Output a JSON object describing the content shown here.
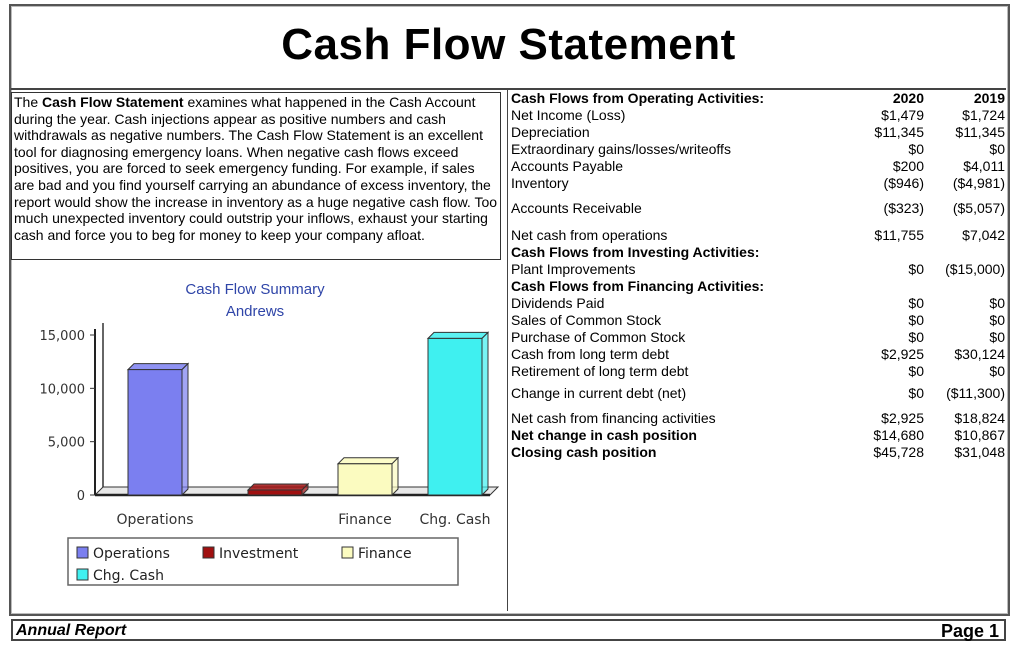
{
  "header": {
    "title": "Cash Flow Statement"
  },
  "description": {
    "bold_lead": "Cash Flow Statement",
    "prefix": "The ",
    "body": " examines what happened in the Cash Account during the year. Cash injections appear as positive numbers and cash withdrawals as negative numbers. The Cash Flow Statement is an excellent tool for diagnosing emergency loans. When negative cash flows exceed positives, you are forced to seek emergency funding. For example, if sales are bad and you find yourself carrying an abundance of excess inventory, the report would show the increase in inventory as a huge negative cash flow. Too much unexpected inventory could outstrip your inflows, exhaust your starting cash and force you to beg for money to keep your company afloat."
  },
  "statement": {
    "year_2020": "2020",
    "year_2019": "2019",
    "rows": [
      {
        "label": "Cash Flows from Operating Activities:",
        "bold": true,
        "v2020": "",
        "v2019": ""
      },
      {
        "label": "Net Income (Loss)",
        "bold": false,
        "v2020": "$1,479",
        "v2019": "$1,724"
      },
      {
        "label": "Depreciation",
        "bold": false,
        "v2020": "$11,345",
        "v2019": "$11,345"
      },
      {
        "label": "Extraordinary gains/losses/writeoffs",
        "bold": false,
        "v2020": "$0",
        "v2019": "$0"
      },
      {
        "label": "Accounts Payable",
        "bold": false,
        "v2020": "$200",
        "v2019": "$4,011"
      },
      {
        "label": "Inventory",
        "bold": false,
        "v2020": "($946)",
        "v2019": "($4,981)"
      },
      {
        "label": "Accounts Receivable",
        "bold": false,
        "v2020": "($323)",
        "v2019": "($5,057)"
      },
      {
        "label": "Net cash from operations",
        "bold": false,
        "v2020": "$11,755",
        "v2019": "$7,042"
      },
      {
        "label": "Cash Flows from Investing Activities:",
        "bold": true,
        "v2020": "",
        "v2019": ""
      },
      {
        "label": "Plant Improvements",
        "bold": false,
        "v2020": "$0",
        "v2019": "($15,000)"
      },
      {
        "label": "Cash Flows from Financing Activities:",
        "bold": true,
        "v2020": "",
        "v2019": ""
      },
      {
        "label": "Dividends Paid",
        "bold": false,
        "v2020": "$0",
        "v2019": "$0"
      },
      {
        "label": "Sales of Common Stock",
        "bold": false,
        "v2020": "$0",
        "v2019": "$0"
      },
      {
        "label": "Purchase of Common Stock",
        "bold": false,
        "v2020": "$0",
        "v2019": "$0"
      },
      {
        "label": "Cash from long term debt",
        "bold": false,
        "v2020": "$2,925",
        "v2019": "$30,124"
      },
      {
        "label": "Retirement of long term debt",
        "bold": false,
        "v2020": "$0",
        "v2019": "$0"
      },
      {
        "label": "Change in current debt (net)",
        "bold": false,
        "v2020": "$0",
        "v2019": "($11,300)"
      },
      {
        "label": "Net cash from financing activities",
        "bold": false,
        "v2020": "$2,925",
        "v2019": "$18,824"
      },
      {
        "label": "Net change in cash position",
        "bold": true,
        "v2020": "$14,680",
        "v2019": "$10,867"
      },
      {
        "label": "Closing cash position",
        "bold": true,
        "v2020": "$45,728",
        "v2019": "$31,048"
      }
    ]
  },
  "chart_data": {
    "type": "bar",
    "title": "Cash Flow Summary",
    "subtitle": "Andrews",
    "categories": [
      "Operations",
      "Investment",
      "Finance",
      "Chg. Cash"
    ],
    "x_tick_labels": [
      "Operations",
      "",
      "Finance",
      "Chg. Cash"
    ],
    "values": [
      11755,
      0,
      2925,
      14680
    ],
    "colors": [
      "#7b7ff0",
      "#a01010",
      "#fbfbc0",
      "#3ff0f0"
    ],
    "ylim": [
      0,
      15000
    ],
    "yticks": [
      "15,000",
      "10,000",
      "5,000",
      "0"
    ],
    "ytick_values": [
      15000,
      10000,
      5000,
      0
    ],
    "legend": [
      "Operations",
      "Investment",
      "Finance",
      "Chg. Cash"
    ],
    "legend_position": "bottom"
  },
  "footer": {
    "left": "Annual Report",
    "right": "Page 1"
  }
}
